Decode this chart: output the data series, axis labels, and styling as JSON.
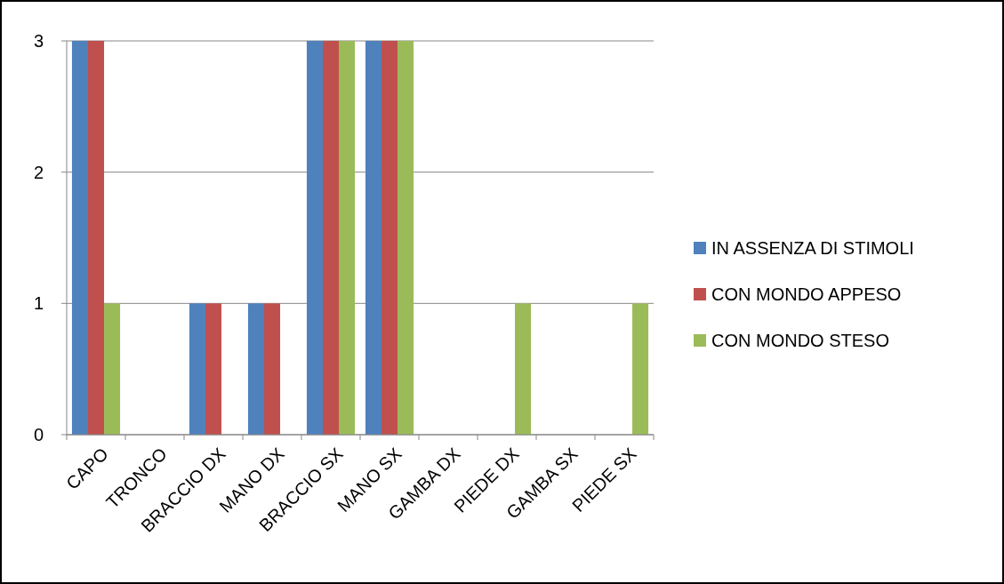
{
  "chart_data": {
    "type": "bar",
    "categories": [
      "CAPO",
      "TRONCO",
      "BRACCIO DX",
      "MANO DX",
      "BRACCIO SX",
      "MANO SX",
      "GAMBA DX",
      "PIEDE DX",
      "GAMBA SX",
      "PIEDE SX"
    ],
    "series": [
      {
        "name": "IN ASSENZA DI STIMOLI",
        "color": "#4f81bd",
        "values": [
          3,
          0,
          1,
          1,
          3,
          3,
          0,
          0,
          0,
          0
        ]
      },
      {
        "name": "CON MONDO APPESO",
        "color": "#c0504d",
        "values": [
          3,
          0,
          1,
          1,
          3,
          3,
          0,
          0,
          0,
          0
        ]
      },
      {
        "name": "CON MONDO STESO",
        "color": "#9bbb59",
        "values": [
          1,
          0,
          0,
          0,
          3,
          3,
          0,
          1,
          0,
          1
        ]
      }
    ],
    "ylim": [
      0,
      3
    ],
    "yticks": [
      0,
      1,
      2,
      3
    ],
    "grid": "y",
    "legend": "right"
  }
}
